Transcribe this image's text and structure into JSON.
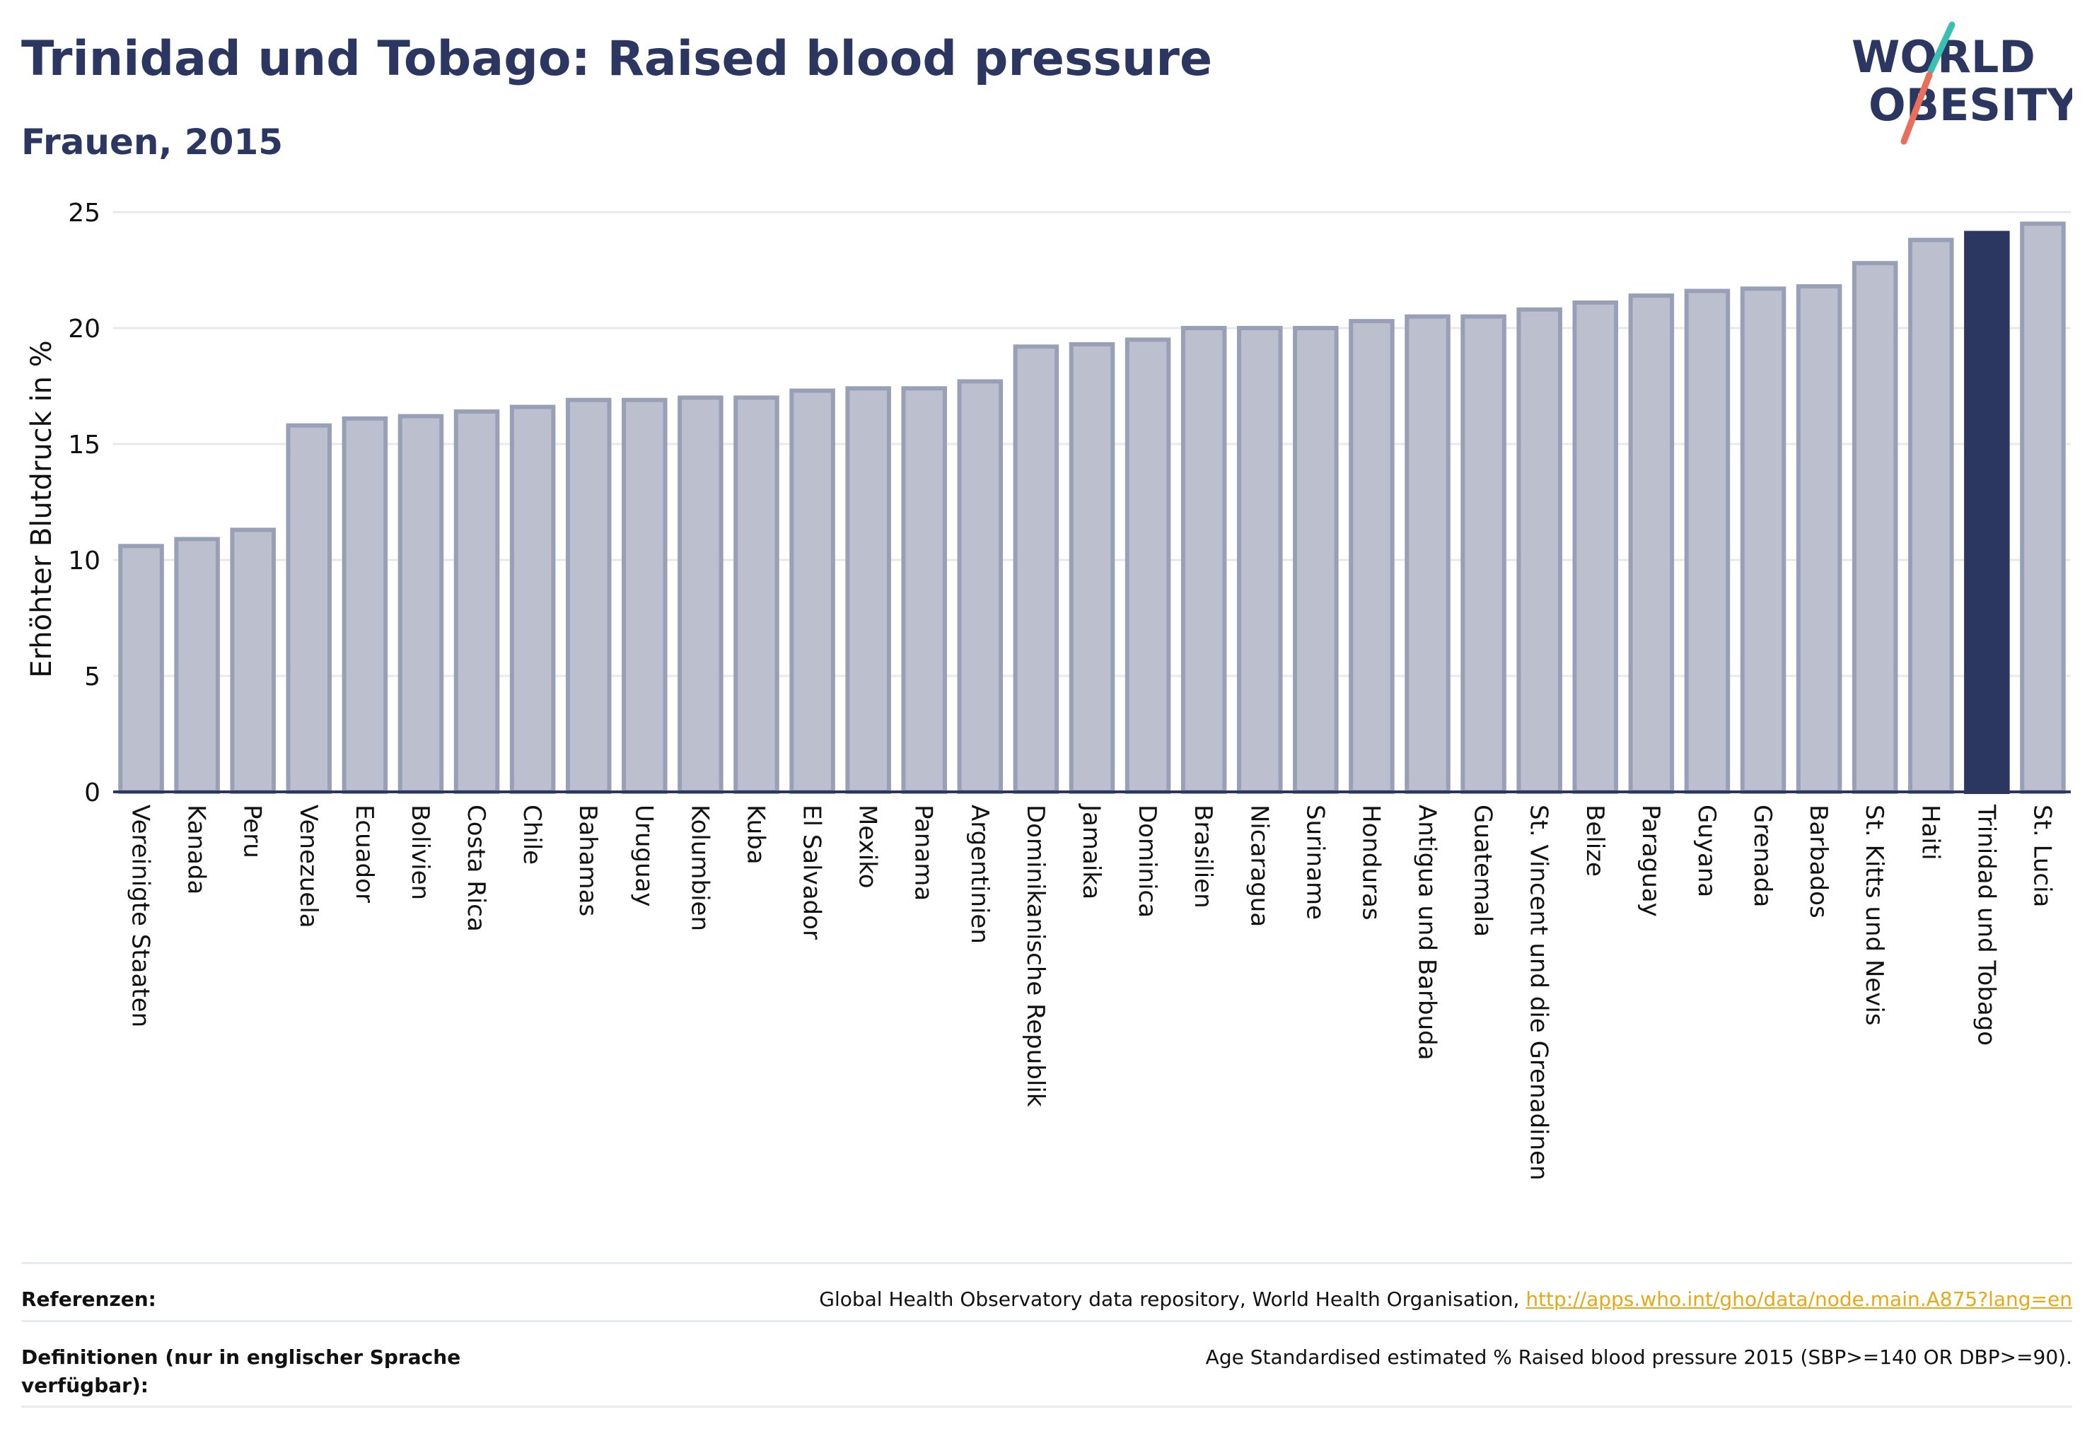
{
  "header": {
    "title": "Trinidad und Tobago: Raised blood pressure",
    "subtitle": "Frauen, 2015"
  },
  "logo": {
    "line1": "WORLD",
    "line2": "OBESITY"
  },
  "colors": {
    "bar_default_fill": "#bcc0ce",
    "bar_default_stroke": "#98a0b8",
    "bar_highlight": "#2b3760",
    "text": "#2b3760",
    "grid": "#e6e8ee",
    "link": "#e6a817"
  },
  "chart_data": {
    "type": "bar",
    "ylabel": "Erhöhter Blutdruck in %",
    "ylim": [
      0,
      25
    ],
    "yticks": [
      0,
      5,
      10,
      15,
      20,
      25
    ],
    "grid": true,
    "highlight": "Trinidad und Tobago",
    "categories": [
      "Vereinigte Staaten",
      "Kanada",
      "Peru",
      "Venezuela",
      "Ecuador",
      "Bolivien",
      "Costa Rica",
      "Chile",
      "Bahamas",
      "Uruguay",
      "Kolumbien",
      "Kuba",
      "El Salvador",
      "Mexiko",
      "Panama",
      "Argentinien",
      "Dominikanische Republik",
      "Jamaika",
      "Dominica",
      "Brasilien",
      "Nicaragua",
      "Suriname",
      "Honduras",
      "Antigua und Barbuda",
      "Guatemala",
      "St. Vincent und die Grenadinen",
      "Belize",
      "Paraguay",
      "Guyana",
      "Grenada",
      "Barbados",
      "St. Kitts und Nevis",
      "Haiti",
      "Trinidad und Tobago",
      "St. Lucia"
    ],
    "values": [
      10.6,
      10.9,
      11.3,
      15.8,
      16.1,
      16.2,
      16.4,
      16.6,
      16.9,
      16.9,
      17.0,
      17.0,
      17.3,
      17.4,
      17.4,
      17.7,
      19.2,
      19.3,
      19.5,
      20.0,
      20.0,
      20.0,
      20.3,
      20.5,
      20.5,
      20.8,
      21.1,
      21.4,
      21.6,
      21.7,
      21.8,
      22.8,
      23.8,
      24.1,
      24.5
    ]
  },
  "footer": {
    "references_label": "Referenzen:",
    "references_text": "Global Health Observatory data repository, World Health Organisation,",
    "references_link": "http://apps.who.int/gho/data/node.main.A875?lang=en",
    "definitions_label": "Definitionen (nur in englischer Sprache verfügbar):",
    "definitions_text": "Age Standardised estimated % Raised blood pressure 2015 (SBP>=140 OR DBP>=90)."
  }
}
